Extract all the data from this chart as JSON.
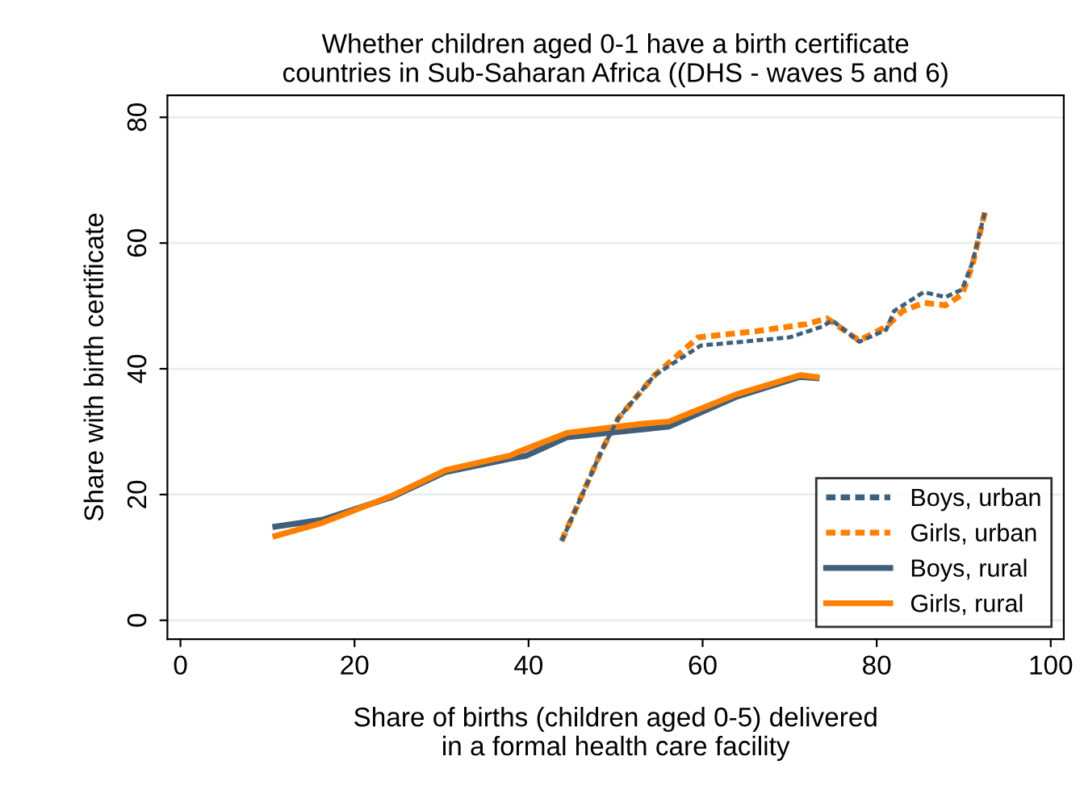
{
  "chart_data": {
    "type": "line",
    "title": "Whether children aged 0-1 have a birth certificate\ncountries in Sub-Saharan Africa ((DHS - waves 5 and 6)",
    "xlabel": "Share of births (children aged 0-5) delivered\nin a formal health care facility",
    "ylabel": "Share with birth certificate",
    "xlim": [
      -1.5,
      101.5
    ],
    "ylim": [
      -3,
      83.5
    ],
    "xticks": [
      0,
      20,
      40,
      60,
      80,
      100
    ],
    "yticks": [
      0,
      20,
      40,
      60,
      80
    ],
    "grid": "y",
    "legend": "bottom right",
    "series": [
      {
        "name": "Boys, urban",
        "color": "#3f5f7a",
        "line_style": "dashed",
        "x": [
          43.8,
          48.4,
          50.3,
          54.5,
          59.8,
          70.0,
          73.7,
          74.9,
          78.0,
          81.1,
          82.0,
          85.4,
          87.9,
          89.8,
          91.0,
          92.5
        ],
        "values": [
          12.6,
          27.0,
          32.1,
          39.0,
          43.7,
          45.0,
          46.7,
          47.7,
          44.3,
          46.2,
          49.2,
          52.2,
          51.4,
          52.6,
          56.9,
          65.3
        ]
      },
      {
        "name": "Girls, urban",
        "color": "#ff8000",
        "line_style": "dashed",
        "x": [
          43.8,
          48.4,
          50.3,
          54.5,
          59.5,
          66.3,
          71.9,
          74.3,
          78.0,
          81.1,
          83.0,
          85.4,
          87.9,
          89.8,
          91.0,
          92.5
        ],
        "values": [
          12.6,
          27.0,
          32.1,
          39.0,
          45.0,
          46.0,
          47.1,
          48.0,
          44.5,
          46.7,
          49.2,
          50.5,
          50.1,
          51.8,
          56.5,
          65.3
        ]
      },
      {
        "name": "Boys, rural",
        "color": "#3f5f7a",
        "line_style": "solid",
        "x": [
          10.9,
          16.3,
          24.3,
          30.5,
          37.9,
          39.8,
          44.4,
          53.3,
          56.1,
          63.8,
          71.2,
          73.1
        ],
        "values": [
          14.9,
          16.0,
          19.6,
          23.6,
          25.7,
          26.2,
          29.1,
          30.4,
          30.8,
          35.5,
          38.7,
          38.5
        ]
      },
      {
        "name": "Girls, rural",
        "color": "#ff8000",
        "line_style": "solid",
        "x": [
          10.9,
          16.3,
          24.3,
          30.5,
          37.9,
          38.5,
          44.4,
          53.3,
          56.1,
          63.8,
          71.2,
          73.1
        ],
        "values": [
          13.4,
          15.5,
          19.8,
          23.9,
          26.2,
          26.6,
          29.8,
          31.3,
          31.6,
          35.9,
          39.0,
          38.7
        ]
      }
    ]
  }
}
